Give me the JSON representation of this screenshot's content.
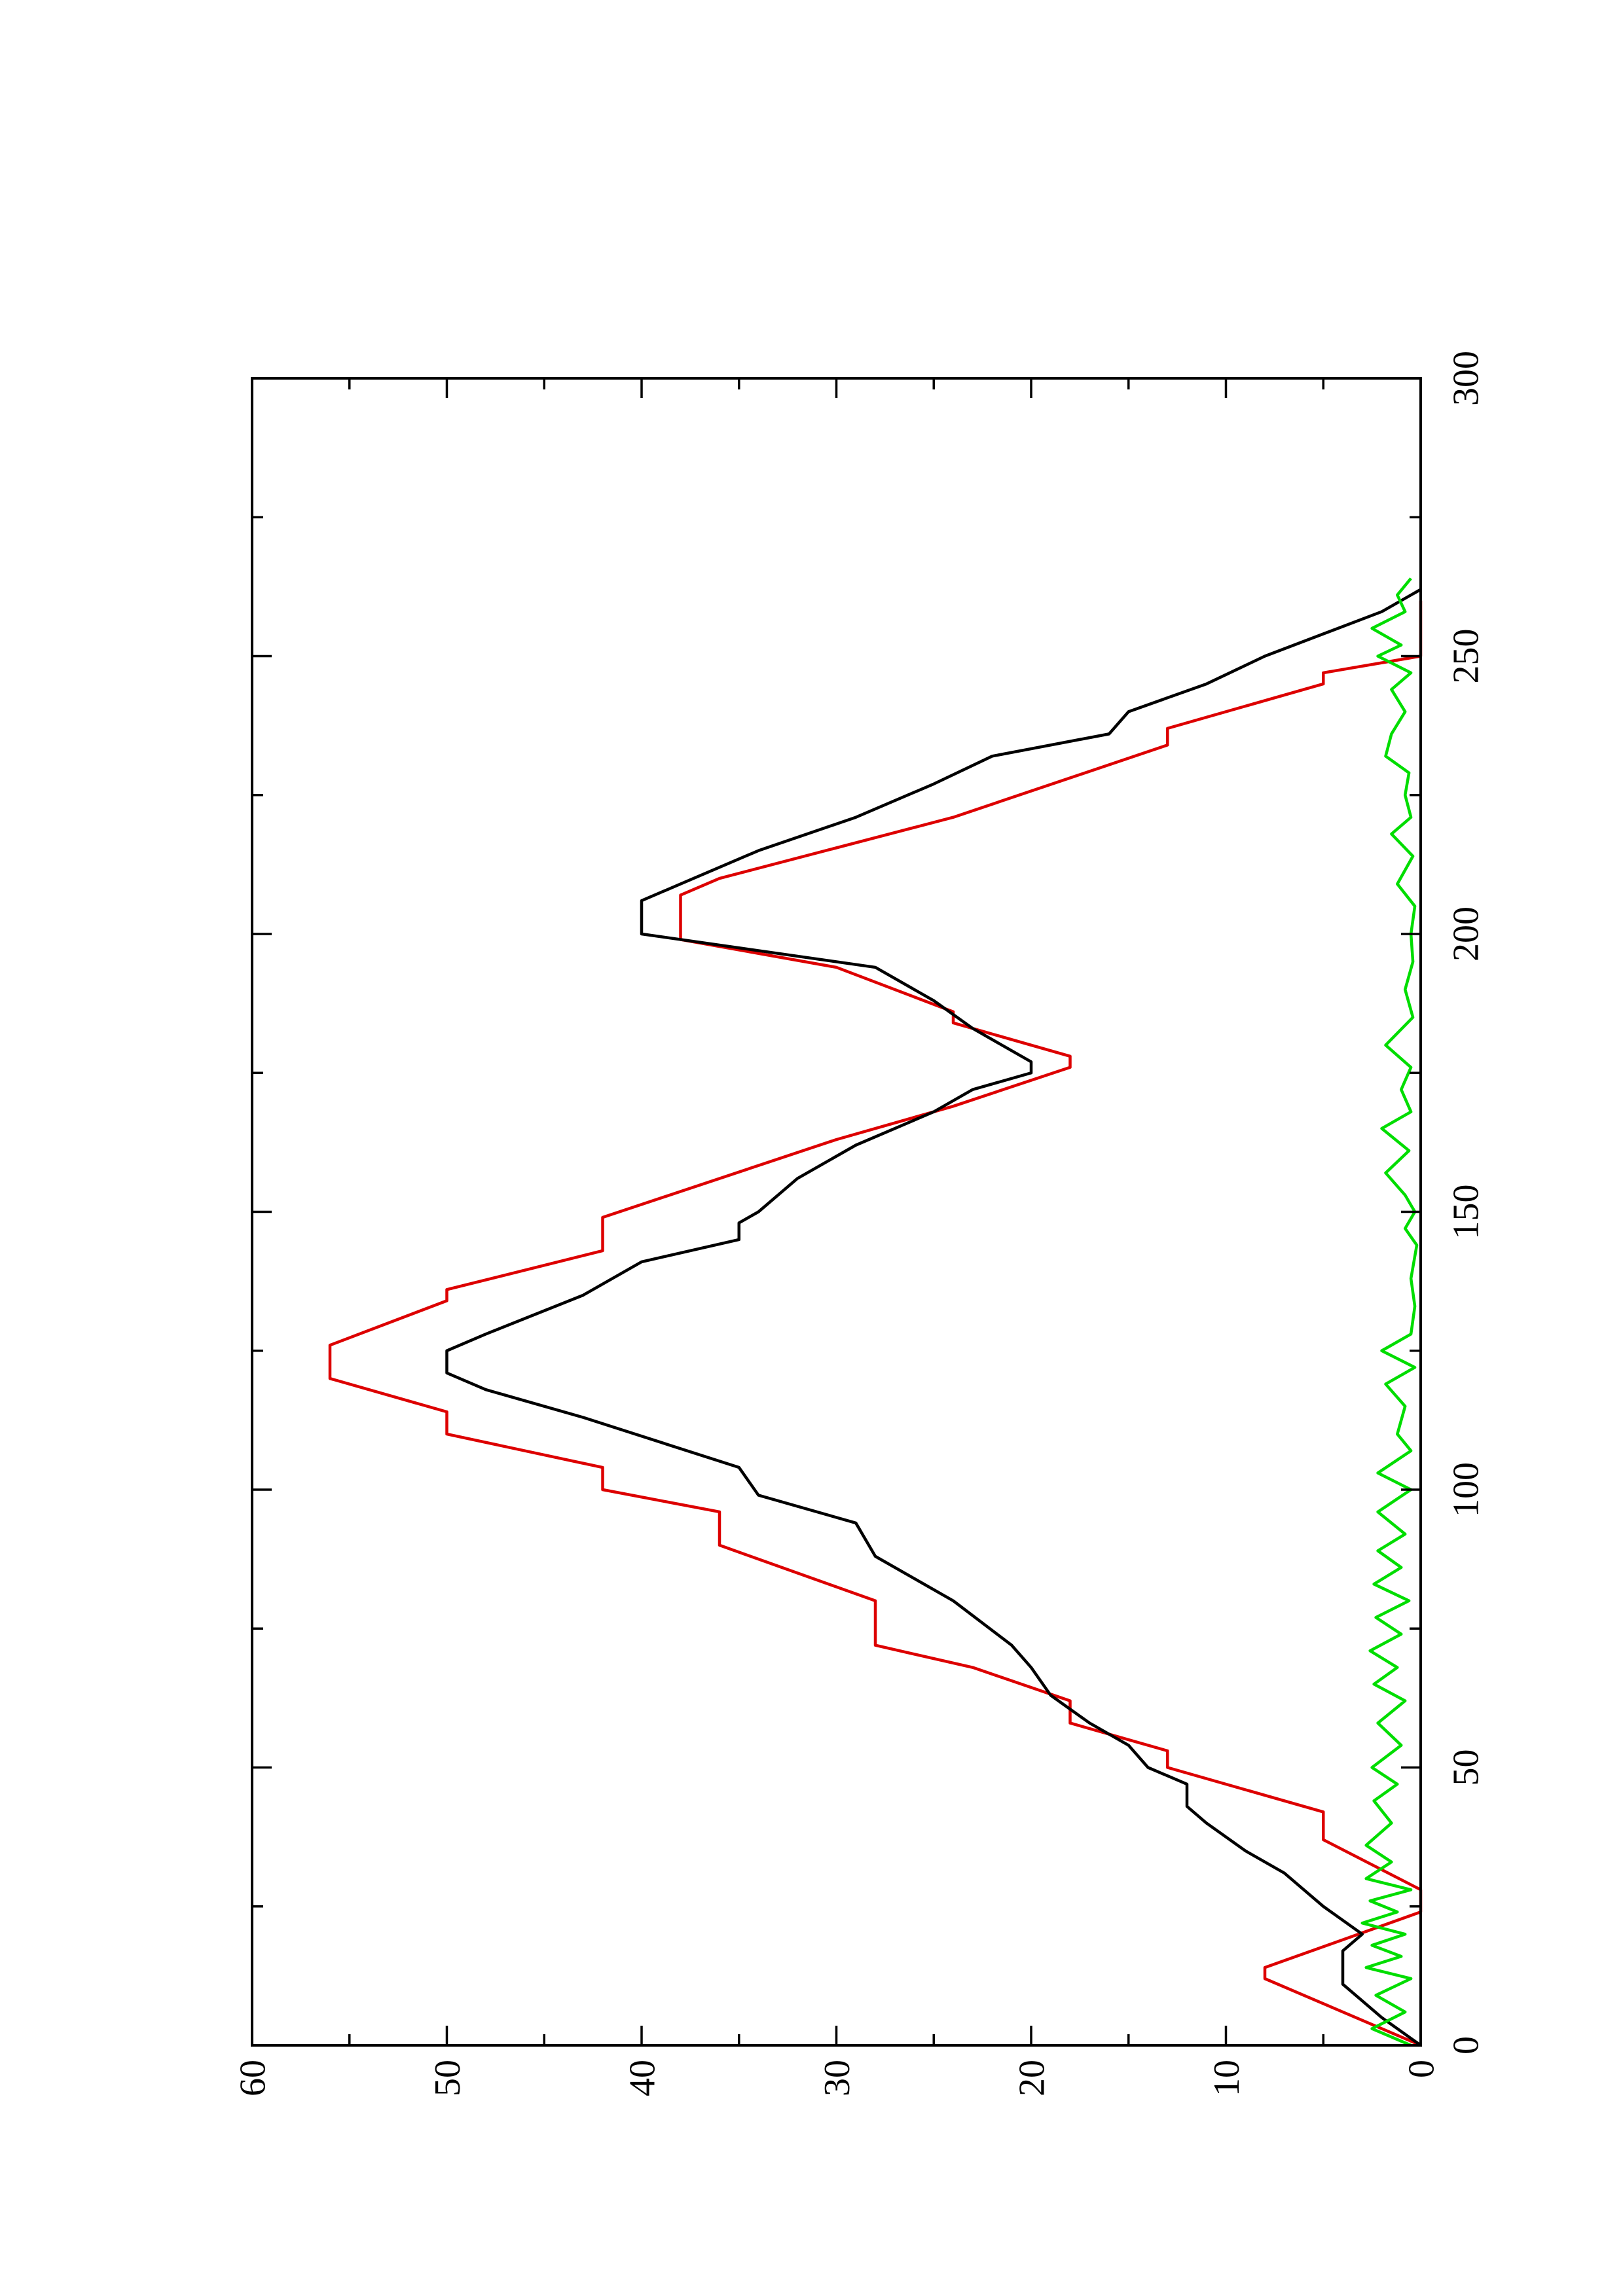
{
  "chart_data": {
    "type": "line",
    "title": "",
    "xlabel": "",
    "ylabel": "",
    "orientation": "rotated 90° counter-clockwise (x axis runs up the page, y axis runs to the left)",
    "xlim": [
      0,
      300
    ],
    "ylim": [
      0,
      60
    ],
    "x_ticks": [
      0,
      50,
      100,
      150,
      200,
      250,
      300
    ],
    "x_tick_labels": [
      "0",
      "50",
      "100",
      "150",
      "200",
      "250",
      "300"
    ],
    "x_minor_step": 25,
    "y_ticks": [
      0,
      10,
      20,
      30,
      40,
      50,
      60
    ],
    "y_tick_labels": [
      "0",
      "10",
      "20",
      "30",
      "40",
      "50",
      "60"
    ],
    "y_minor_step": 5,
    "grid": false,
    "legend": "none",
    "series": [
      {
        "color": "#dd0000",
        "points": [
          [
            0,
            0
          ],
          [
            12,
            8
          ],
          [
            14,
            8
          ],
          [
            24,
            0
          ],
          [
            28,
            0
          ],
          [
            37,
            5
          ],
          [
            42,
            5
          ],
          [
            50,
            13
          ],
          [
            53,
            13
          ],
          [
            58,
            18
          ],
          [
            62,
            18
          ],
          [
            68,
            23
          ],
          [
            72,
            28
          ],
          [
            80,
            28
          ],
          [
            90,
            36
          ],
          [
            96,
            36
          ],
          [
            100,
            42
          ],
          [
            104,
            42
          ],
          [
            110,
            50
          ],
          [
            114,
            50
          ],
          [
            120,
            56
          ],
          [
            126,
            56
          ],
          [
            134,
            50
          ],
          [
            136,
            50
          ],
          [
            143,
            42
          ],
          [
            149,
            42
          ],
          [
            163,
            30
          ],
          [
            169,
            24
          ],
          [
            176,
            18
          ],
          [
            178,
            18
          ],
          [
            184,
            24
          ],
          [
            186,
            24
          ],
          [
            194,
            30
          ],
          [
            199,
            38
          ],
          [
            207,
            38
          ],
          [
            210,
            36
          ],
          [
            221,
            24
          ],
          [
            234,
            13
          ],
          [
            237,
            13
          ],
          [
            245,
            5
          ],
          [
            247,
            5
          ],
          [
            250,
            0
          ],
          [
            260,
            0
          ]
        ]
      },
      {
        "color": "#000000",
        "points": [
          [
            0,
            0
          ],
          [
            5,
            2
          ],
          [
            8,
            3
          ],
          [
            11,
            4
          ],
          [
            13,
            4
          ],
          [
            17,
            4
          ],
          [
            20,
            3
          ],
          [
            25,
            5
          ],
          [
            28,
            6
          ],
          [
            31,
            7
          ],
          [
            35,
            9
          ],
          [
            40,
            11
          ],
          [
            43,
            12
          ],
          [
            47,
            12
          ],
          [
            50,
            14
          ],
          [
            54,
            15
          ],
          [
            58,
            17
          ],
          [
            63,
            19
          ],
          [
            68,
            20
          ],
          [
            72,
            21
          ],
          [
            80,
            24
          ],
          [
            88,
            28
          ],
          [
            94,
            29
          ],
          [
            99,
            34
          ],
          [
            104,
            35
          ],
          [
            113,
            43
          ],
          [
            118,
            48
          ],
          [
            121,
            50
          ],
          [
            125,
            50
          ],
          [
            128,
            48
          ],
          [
            135,
            43
          ],
          [
            141,
            40
          ],
          [
            145,
            35
          ],
          [
            148,
            35
          ],
          [
            150,
            34
          ],
          [
            156,
            32
          ],
          [
            162,
            29
          ],
          [
            168,
            25
          ],
          [
            172,
            23
          ],
          [
            175,
            20
          ],
          [
            177,
            20
          ],
          [
            183,
            23
          ],
          [
            188,
            25
          ],
          [
            194,
            28
          ],
          [
            200,
            40
          ],
          [
            206,
            40
          ],
          [
            209,
            38
          ],
          [
            215,
            34
          ],
          [
            221,
            29
          ],
          [
            227,
            25
          ],
          [
            232,
            22
          ],
          [
            236,
            16
          ],
          [
            240,
            15
          ],
          [
            245,
            11
          ],
          [
            250,
            8
          ],
          [
            254,
            5
          ],
          [
            258,
            2
          ],
          [
            262,
            0
          ]
        ]
      },
      {
        "color": "#00dd00",
        "points": [
          [
            0,
            0.5
          ],
          [
            3,
            2.5
          ],
          [
            6,
            0.8
          ],
          [
            9,
            2.3
          ],
          [
            12,
            0.5
          ],
          [
            14,
            2.8
          ],
          [
            16,
            1
          ],
          [
            18,
            2.5
          ],
          [
            20,
            0.8
          ],
          [
            22,
            3
          ],
          [
            24,
            1.2
          ],
          [
            26,
            2.6
          ],
          [
            28,
            0.5
          ],
          [
            30,
            2.8
          ],
          [
            33,
            1.5
          ],
          [
            36,
            2.8
          ],
          [
            40,
            1.5
          ],
          [
            44,
            2.4
          ],
          [
            47,
            1.2
          ],
          [
            50,
            2.5
          ],
          [
            54,
            1
          ],
          [
            58,
            2.2
          ],
          [
            62,
            0.8
          ],
          [
            65,
            2.4
          ],
          [
            68,
            1.2
          ],
          [
            71,
            2.6
          ],
          [
            74,
            1
          ],
          [
            77,
            2.3
          ],
          [
            80,
            0.6
          ],
          [
            83,
            2.4
          ],
          [
            86,
            1
          ],
          [
            89,
            2.2
          ],
          [
            92,
            0.8
          ],
          [
            96,
            2.2
          ],
          [
            100,
            0.5
          ],
          [
            103,
            2.2
          ],
          [
            107,
            0.5
          ],
          [
            110,
            1.2
          ],
          [
            115,
            0.8
          ],
          [
            119,
            1.8
          ],
          [
            122,
            0.3
          ],
          [
            125,
            2
          ],
          [
            128,
            0.5
          ],
          [
            133,
            0.3
          ],
          [
            138,
            0.5
          ],
          [
            144,
            0.2
          ],
          [
            147,
            0.8
          ],
          [
            150,
            0.3
          ],
          [
            153,
            0.8
          ],
          [
            157,
            1.8
          ],
          [
            161,
            0.6
          ],
          [
            165,
            2
          ],
          [
            168,
            0.5
          ],
          [
            172,
            1
          ],
          [
            176,
            0.5
          ],
          [
            180,
            1.8
          ],
          [
            185,
            0.4
          ],
          [
            190,
            0.8
          ],
          [
            195,
            0.4
          ],
          [
            200,
            0.5
          ],
          [
            205,
            0.3
          ],
          [
            209,
            1.2
          ],
          [
            214,
            0.4
          ],
          [
            218,
            1.5
          ],
          [
            221,
            0.5
          ],
          [
            225,
            0.8
          ],
          [
            229,
            0.6
          ],
          [
            232,
            1.8
          ],
          [
            236,
            1.5
          ],
          [
            240,
            0.8
          ],
          [
            244,
            1.5
          ],
          [
            247,
            0.5
          ],
          [
            250,
            2.2
          ],
          [
            252,
            1
          ],
          [
            255,
            2.5
          ],
          [
            258,
            0.8
          ],
          [
            261,
            1.2
          ],
          [
            264,
            0.5
          ]
        ]
      }
    ]
  }
}
